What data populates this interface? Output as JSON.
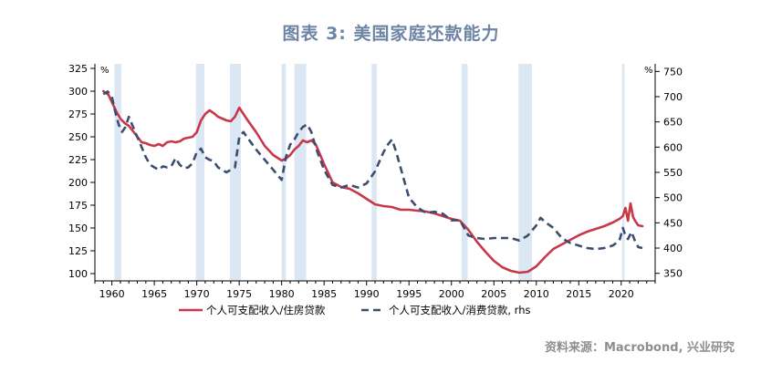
{
  "title": "图表 3:  美国家庭还款能力",
  "source": "资料来源：Macrobond, 兴业研究",
  "colors": {
    "mortgage_line": "#c8384a",
    "consumer_line": "#3c4e6e",
    "recession_band": "#dce7f4",
    "axis": "#000000"
  },
  "chart_data": {
    "type": "line",
    "title": "图表 3:  美国家庭还款能力",
    "xlim": [
      1958,
      2024
    ],
    "x_ticks": [
      1960,
      1965,
      1970,
      1975,
      1980,
      1985,
      1990,
      1995,
      2000,
      2005,
      2010,
      2015,
      2020
    ],
    "y_left": {
      "unit": "%",
      "range": [
        92,
        330
      ],
      "ticks": [
        100,
        125,
        150,
        175,
        200,
        225,
        250,
        275,
        300,
        325
      ]
    },
    "y_right": {
      "unit": "%",
      "range": [
        335,
        765
      ],
      "ticks": [
        350,
        400,
        450,
        500,
        550,
        600,
        650,
        700,
        750
      ]
    },
    "recession_bands": [
      [
        1960.3,
        1961.1
      ],
      [
        1969.9,
        1970.9
      ],
      [
        1973.9,
        1975.2
      ],
      [
        1980.0,
        1980.5
      ],
      [
        1981.5,
        1982.9
      ],
      [
        1990.6,
        1991.2
      ],
      [
        2001.2,
        2001.9
      ],
      [
        2007.9,
        2009.5
      ],
      [
        2020.1,
        2020.4
      ]
    ],
    "series": [
      {
        "name": "个人可支配收入/住房贷款",
        "axis": "left",
        "style": "solid",
        "color": "#c8384a",
        "x": [
          1959.0,
          1959.6,
          1960.0,
          1960.5,
          1961.0,
          1961.5,
          1962.0,
          1962.5,
          1963.0,
          1963.5,
          1964.0,
          1964.5,
          1965.0,
          1965.5,
          1966.0,
          1966.5,
          1967.0,
          1967.5,
          1968.0,
          1968.5,
          1969.0,
          1969.5,
          1970.0,
          1970.5,
          1971.0,
          1971.5,
          1972.0,
          1972.5,
          1973.0,
          1973.5,
          1974.0,
          1974.5,
          1975.0,
          1975.5,
          1976.0,
          1977.0,
          1978.0,
          1979.0,
          1980.0,
          1980.5,
          1981.0,
          1981.5,
          1982.0,
          1982.5,
          1983.0,
          1983.5,
          1984.0,
          1985.0,
          1986.0,
          1987.0,
          1988.0,
          1989.0,
          1990.0,
          1991.0,
          1992.0,
          1993.0,
          1994.0,
          1995.0,
          1996.0,
          1997.0,
          1998.0,
          1999.0,
          2000.0,
          2001.0,
          2002.0,
          2003.0,
          2004.0,
          2005.0,
          2006.0,
          2007.0,
          2008.0,
          2009.0,
          2010.0,
          2011.0,
          2012.0,
          2013.0,
          2014.0,
          2015.0,
          2016.0,
          2017.0,
          2018.0,
          2019.0,
          2019.8,
          2020.2,
          2020.5,
          2020.8,
          2021.1,
          2021.4,
          2021.7,
          2022.0,
          2022.5
        ],
        "values": [
          300,
          296,
          288,
          278,
          270,
          265,
          262,
          256,
          250,
          244,
          243,
          241,
          240,
          242,
          240,
          244,
          245,
          244,
          245,
          248,
          249,
          250,
          255,
          268,
          275,
          279,
          276,
          272,
          270,
          268,
          267,
          272,
          282,
          275,
          268,
          255,
          240,
          230,
          224,
          226,
          230,
          236,
          240,
          246,
          244,
          246,
          242,
          220,
          200,
          195,
          193,
          188,
          182,
          176,
          174,
          173,
          170,
          170,
          169,
          168,
          166,
          163,
          160,
          158,
          148,
          135,
          124,
          114,
          107,
          103,
          101,
          102,
          108,
          118,
          127,
          132,
          137,
          142,
          146,
          149,
          152,
          156,
          160,
          163,
          172,
          158,
          177,
          162,
          157,
          153,
          152
        ]
      },
      {
        "name": "个人可支配收入/消费贷款, rhs",
        "axis": "right",
        "style": "dashed",
        "color": "#3c4e6e",
        "x": [
          1959.0,
          1959.5,
          1960.0,
          1960.4,
          1960.8,
          1961.2,
          1961.6,
          1962.0,
          1962.5,
          1963.0,
          1963.5,
          1964.0,
          1964.5,
          1965.0,
          1965.5,
          1966.0,
          1966.5,
          1967.0,
          1967.5,
          1968.0,
          1968.5,
          1969.0,
          1969.5,
          1970.0,
          1970.5,
          1971.0,
          1971.5,
          1972.0,
          1972.5,
          1973.0,
          1973.5,
          1974.0,
          1974.5,
          1975.0,
          1975.5,
          1976.0,
          1977.0,
          1978.0,
          1979.0,
          1980.0,
          1980.5,
          1981.0,
          1981.5,
          1982.0,
          1982.5,
          1983.0,
          1983.5,
          1984.0,
          1985.0,
          1986.0,
          1987.0,
          1988.0,
          1989.0,
          1990.0,
          1991.0,
          1992.0,
          1992.5,
          1993.0,
          1993.5,
          1994.0,
          1995.0,
          1996.0,
          1997.0,
          1998.0,
          1999.0,
          2000.0,
          2001.0,
          2002.0,
          2003.0,
          2004.0,
          2005.0,
          2006.0,
          2007.0,
          2008.0,
          2009.0,
          2010.0,
          2010.5,
          2011.0,
          2012.0,
          2013.0,
          2014.0,
          2015.0,
          2016.0,
          2017.0,
          2018.0,
          2019.0,
          2019.8,
          2020.2,
          2020.5,
          2020.8,
          2021.2,
          2021.6,
          2022.0,
          2022.5
        ],
        "values": [
          705,
          710,
          700,
          670,
          645,
          630,
          640,
          660,
          640,
          620,
          600,
          580,
          565,
          560,
          555,
          562,
          560,
          562,
          578,
          565,
          558,
          560,
          568,
          590,
          597,
          580,
          575,
          572,
          560,
          555,
          550,
          555,
          560,
          620,
          630,
          618,
          595,
          575,
          555,
          535,
          580,
          605,
          615,
          630,
          640,
          645,
          630,
          600,
          555,
          525,
          520,
          525,
          520,
          528,
          552,
          590,
          605,
          615,
          590,
          560,
          500,
          480,
          470,
          472,
          468,
          455,
          455,
          425,
          420,
          418,
          420,
          420,
          420,
          415,
          425,
          445,
          460,
          452,
          440,
          420,
          410,
          405,
          400,
          398,
          400,
          405,
          415,
          440,
          425,
          418,
          432,
          415,
          402,
          400
        ]
      }
    ]
  }
}
